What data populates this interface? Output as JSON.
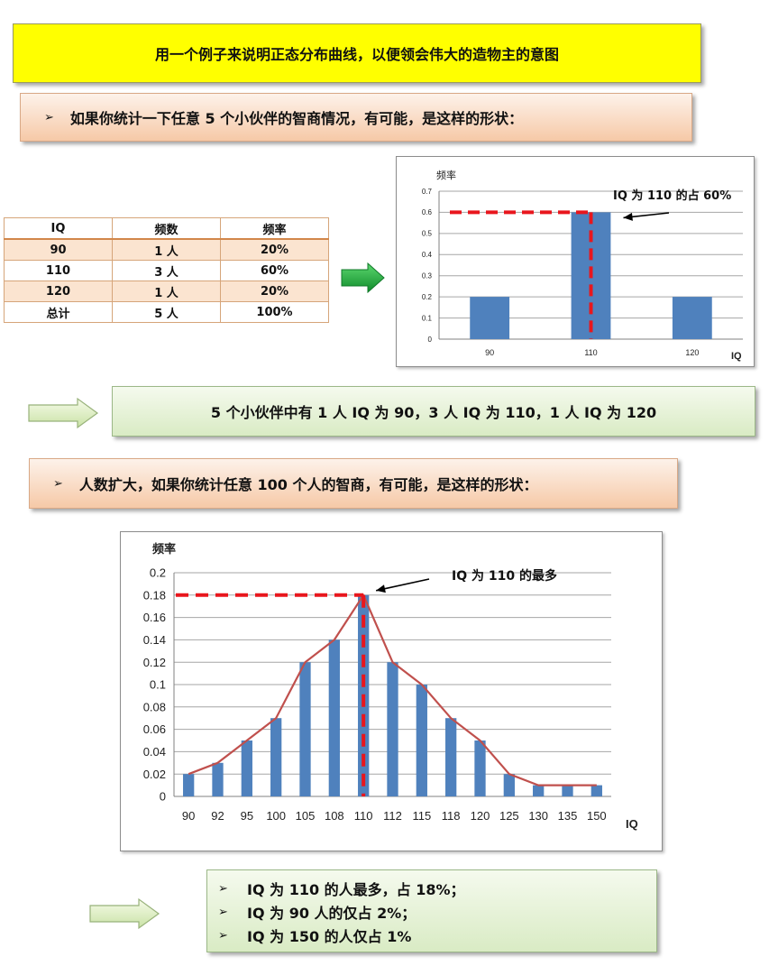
{
  "title": "用一个例子来说明正态分布曲线，以便领会伟大的造物主的意图",
  "section1": {
    "bullet": "➢",
    "heading": "如果你统计一下任意 5 个小伙伴的智商情况，有可能，是这样的形状：",
    "table": {
      "headers": [
        "IQ",
        "频数",
        "频率"
      ],
      "rows": [
        [
          "90",
          "1 人",
          "20%"
        ],
        [
          "110",
          "3 人",
          "60%"
        ],
        [
          "120",
          "1 人",
          "20%"
        ],
        [
          "总计",
          "5 人",
          "100%"
        ]
      ]
    },
    "summary": "5 个小伙伴中有 1 人 IQ 为 90，3 人 IQ 为 110，1 人 IQ 为 120"
  },
  "section2": {
    "bullet": "➢",
    "heading": "人数扩大，如果你统计任意 100 个人的智商，有可能，是这样的形状：",
    "conclusions": [
      {
        "marker": "➢",
        "text": "IQ 为 110 的人最多，占 18%；"
      },
      {
        "marker": "➢",
        "text": "IQ 为 90 人的仅占 2%；"
      },
      {
        "marker": "➢",
        "text": "IQ 为 150 的人仅占 1%"
      }
    ]
  },
  "colors": {
    "bar": "#4f81bd",
    "curve": "#c0504d",
    "dash": "#e8161d",
    "arrow_green": "#1ea038"
  },
  "chart_data": [
    {
      "type": "bar",
      "categories": [
        "90",
        "110",
        "120"
      ],
      "values": [
        0.2,
        0.6,
        0.2
      ],
      "ylabel": "频率",
      "xlabel": "IQ",
      "ylim": [
        0,
        0.7
      ],
      "yticks": [
        "0",
        "0.1",
        "0.2",
        "0.3",
        "0.4",
        "0.5",
        "0.6",
        "0.7"
      ],
      "grid": true,
      "annotation": "IQ 为 110 的占 60%",
      "reference_line": 0.6
    },
    {
      "type": "bar",
      "categories": [
        "90",
        "92",
        "95",
        "100",
        "105",
        "108",
        "110",
        "112",
        "115",
        "118",
        "120",
        "125",
        "130",
        "135",
        "150"
      ],
      "values": [
        0.02,
        0.03,
        0.05,
        0.07,
        0.12,
        0.14,
        0.18,
        0.12,
        0.1,
        0.07,
        0.05,
        0.02,
        0.01,
        0.01,
        0.01
      ],
      "line_overlay": true,
      "ylabel": "频率",
      "xlabel": "IQ",
      "ylim": [
        0,
        0.2
      ],
      "yticks": [
        "0",
        "0.02",
        "0.04",
        "0.06",
        "0.08",
        "0.1",
        "0.12",
        "0.14",
        "0.16",
        "0.18",
        "0.2"
      ],
      "grid": true,
      "annotation": "IQ 为 110 的最多",
      "reference_line": 0.18
    }
  ]
}
